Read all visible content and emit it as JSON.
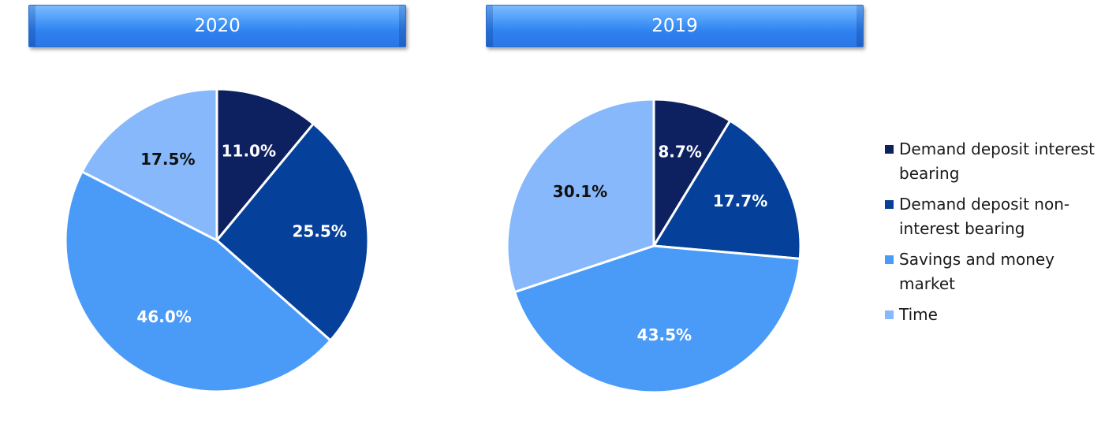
{
  "charts": [
    {
      "year_label": "2020"
    },
    {
      "year_label": "2019"
    }
  ],
  "legend": [
    {
      "label": "Demand deposit interest bearing",
      "color": "#0d2060"
    },
    {
      "label": "Demand deposit non-interest bearing",
      "color": "#05419a"
    },
    {
      "label": "Savings and money market",
      "color": "#4a9af8"
    },
    {
      "label": "Time",
      "color": "#86b8fb"
    }
  ],
  "chart_data": [
    {
      "type": "pie",
      "title": "2020",
      "categories": [
        "Demand deposit interest bearing",
        "Demand deposit non-interest bearing",
        "Savings and money market",
        "Time"
      ],
      "values": [
        11.0,
        25.5,
        46.0,
        17.5
      ],
      "labels": [
        "11.0%",
        "25.5%",
        "46.0%",
        "17.5%"
      ],
      "colors": [
        "#0d2060",
        "#05419a",
        "#4a9af8",
        "#86b8fb"
      ],
      "label_colors": [
        "#ffffff",
        "#ffffff",
        "#ffffff",
        "#111111"
      ],
      "legend_position": "right"
    },
    {
      "type": "pie",
      "title": "2019",
      "categories": [
        "Demand deposit interest bearing",
        "Demand deposit non-interest bearing",
        "Savings and money market",
        "Time"
      ],
      "values": [
        8.7,
        17.7,
        43.5,
        30.1
      ],
      "labels": [
        "8.7%",
        "17.7%",
        "43.5%",
        "30.1%"
      ],
      "colors": [
        "#0d2060",
        "#05419a",
        "#4a9af8",
        "#86b8fb"
      ],
      "label_colors": [
        "#ffffff",
        "#ffffff",
        "#ffffff",
        "#111111"
      ],
      "legend_position": "right"
    }
  ]
}
